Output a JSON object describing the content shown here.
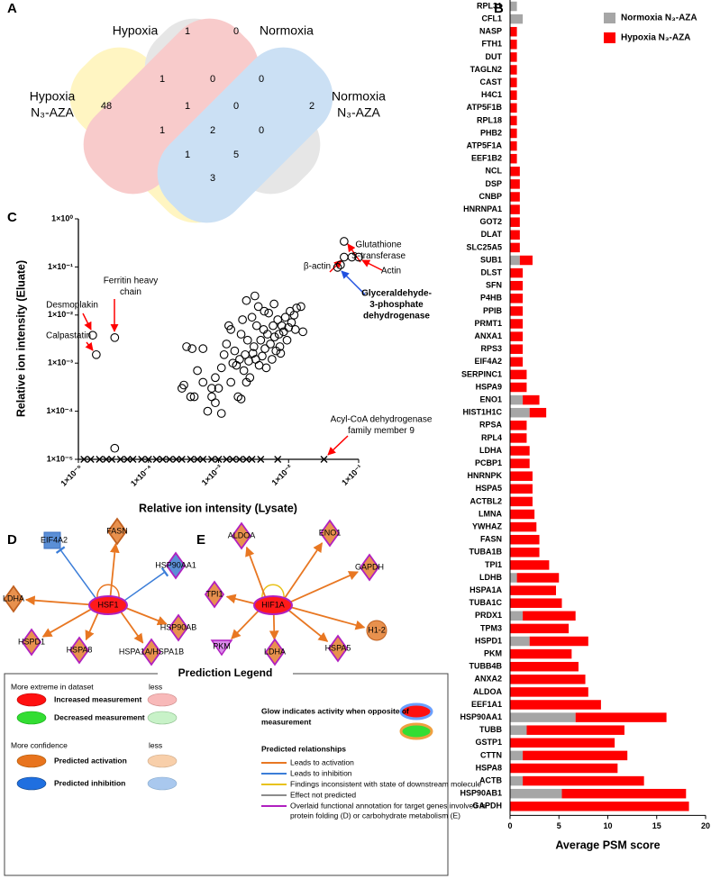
{
  "panels": [
    "A",
    "B",
    "C",
    "D",
    "E"
  ],
  "venn": {
    "labels": [
      {
        "lines": [
          "Hypoxia"
        ]
      },
      {
        "lines": [
          "Normoxia"
        ]
      },
      {
        "lines": [
          "Hypoxia",
          "N₃-AZA"
        ]
      },
      {
        "lines": [
          "Normoxia",
          "N₃-AZA"
        ]
      }
    ],
    "counts": [
      1,
      0,
      1,
      0,
      0,
      48,
      1,
      0,
      2,
      1,
      2,
      0,
      1,
      5,
      3
    ]
  },
  "chart_data": [
    {
      "type": "bar",
      "orientation": "horizontal",
      "stacked": true,
      "xlabel": "Average PSM score",
      "categories": [
        "RPL31",
        "CFL1",
        "NASP",
        "FTH1",
        "DUT",
        "TAGLN2",
        "CAST",
        "H4C1",
        "ATP5F1B",
        "RPL18",
        "PHB2",
        "ATP5F1A",
        "EEF1B2",
        "NCL",
        "DSP",
        "CNBP",
        "HNRNPA1",
        "GOT2",
        "DLAT",
        "SLC25A5",
        "SUB1",
        "DLST",
        "SFN",
        "P4HB",
        "PPIB",
        "PRMT1",
        "ANXA1",
        "RPS3",
        "EIF4A2",
        "SERPINC1",
        "HSPA9",
        "ENO1",
        "HIST1H1C",
        "RPSA",
        "RPL4",
        "LDHA",
        "PCBP1",
        "HNRNPK",
        "HSPA5",
        "ACTBL2",
        "LMNA",
        "YWHAZ",
        "FASN",
        "TUBA1B",
        "TPI1",
        "LDHB",
        "HSPA1A",
        "TUBA1C",
        "PRDX1",
        "TPM3",
        "HSPD1",
        "PKM",
        "TUBB4B",
        "ANXA2",
        "ALDOA",
        "EEF1A1",
        "HSP90AA1",
        "TUBB",
        "GSTP1",
        "CTTN",
        "HSPA8",
        "ACTB",
        "HSP90AB1",
        "GAPDH"
      ],
      "series": [
        {
          "name": "Normoxia N₃-AZA",
          "color": "#a6a6a6",
          "values": [
            0.7,
            1.3,
            0,
            0,
            0,
            0,
            0,
            0,
            0,
            0,
            0,
            0,
            0,
            0,
            0,
            0,
            0,
            0,
            0,
            0,
            1.0,
            0,
            0,
            0,
            0,
            0,
            0,
            0,
            0,
            0,
            0,
            1.3,
            2.0,
            0,
            0,
            0,
            0,
            0,
            0,
            0,
            0,
            0,
            0,
            0,
            0,
            0.7,
            0,
            0,
            1.3,
            0,
            2.0,
            0,
            0,
            0,
            0,
            0,
            6.7,
            1.7,
            0,
            1.3,
            0,
            1.3,
            5.3,
            0
          ]
        },
        {
          "name": "Hypoxia N₃-AZA",
          "color": "#ff0000",
          "values": [
            0,
            0,
            0.7,
            0.7,
            0.7,
            0.7,
            0.7,
            0.7,
            0.7,
            0.7,
            0.7,
            0.7,
            0.7,
            1.0,
            1.0,
            1.0,
            1.0,
            1.0,
            1.0,
            1.0,
            1.3,
            1.3,
            1.3,
            1.3,
            1.3,
            1.3,
            1.3,
            1.3,
            1.3,
            1.7,
            1.7,
            1.7,
            1.7,
            1.7,
            1.7,
            2.0,
            2.0,
            2.3,
            2.3,
            2.3,
            2.5,
            2.7,
            3.0,
            3.0,
            4.0,
            4.3,
            4.7,
            5.3,
            5.4,
            6.0,
            6.0,
            6.3,
            7.0,
            7.7,
            8.0,
            9.3,
            9.3,
            10.0,
            10.7,
            10.7,
            11.0,
            12.4,
            12.7,
            18.3
          ]
        }
      ],
      "xlim": [
        0,
        20
      ],
      "xticks": [
        0,
        5,
        10,
        15,
        20
      ],
      "legend": "top-right"
    },
    {
      "type": "scatter",
      "xscale": "log",
      "yscale": "log",
      "xlabel": "Relative ion intensity (Lysate)",
      "ylabel": "Relative ion intensity (Eluate)",
      "xlim": [
        1e-05,
        0.1
      ],
      "ylim": [
        1e-05,
        1
      ],
      "xticks": [
        {
          "value": 1e-05,
          "label": "1×10⁻⁵"
        },
        {
          "value": 0.0001,
          "label": "1×10⁻⁴"
        },
        {
          "value": 0.001,
          "label": "1×10⁻³"
        },
        {
          "value": 0.01,
          "label": "1×10⁻²"
        },
        {
          "value": 0.1,
          "label": "1×10⁻¹"
        }
      ],
      "yticks": [
        {
          "value": 1e-05,
          "label": "1×10⁻⁵"
        },
        {
          "value": 0.0001,
          "label": "1×10⁻⁴"
        },
        {
          "value": 0.001,
          "label": "1×10⁻³"
        },
        {
          "value": 0.01,
          "label": "1×10⁻²"
        },
        {
          "value": 0.1,
          "label": "1×10⁻¹"
        },
        {
          "value": 1,
          "label": "1×10⁰"
        }
      ],
      "series": [
        {
          "marker": "o",
          "color": "#000000",
          "x": [
            0.0003,
            0.00032,
            0.0004,
            0.00045,
            0.0005,
            0.0006,
            0.0007,
            0.0008,
            0.0009,
            0.001,
            0.0011,
            0.0012,
            0.0013,
            0.0014,
            0.0015,
            0.0016,
            0.0017,
            0.0018,
            0.002,
            0.0021,
            0.0022,
            0.0023,
            0.0024,
            0.0025,
            0.0026,
            0.0027,
            0.0028,
            0.003,
            0.0031,
            0.0032,
            0.0034,
            0.0035,
            0.0037,
            0.0038,
            0.004,
            0.0042,
            0.0044,
            0.0046,
            0.0048,
            0.005,
            0.0052,
            0.0055,
            0.0058,
            0.006,
            0.0063,
            0.0066,
            0.007,
            0.0073,
            0.0077,
            0.008,
            0.0085,
            0.009,
            0.0095,
            0.01,
            0.0105,
            0.011,
            0.012,
            0.0125,
            0.013,
            0.0008,
            0.0009,
            0.0011,
            0.0019,
            0.0006,
            0.00035,
            0.00042,
            0.0015,
            0.0045,
            0.0033,
            0.0062,
            0.0075,
            0.015,
            0.016,
            0.0025,
            0.0021,
            1.6e-05,
            1.8e-05,
            3.3e-05,
            3.3e-05,
            0.062,
            0.062,
            0.08,
            0.1,
            0.05,
            0.055
          ],
          "values": [
            0.0003,
            0.00035,
            0.0002,
            0.0002,
            0.0007,
            0.0004,
            0.0001,
            0.0002,
            0.0005,
            0.0003,
            0.0008,
            0.0015,
            0.0025,
            0.006,
            0.0004,
            0.001,
            0.0018,
            0.0009,
            0.0012,
            0.004,
            0.008,
            0.0007,
            0.0015,
            0.02,
            0.003,
            0.0011,
            0.0005,
            0.009,
            0.0016,
            0.0022,
            0.0012,
            0.006,
            0.015,
            0.0009,
            0.003,
            0.0014,
            0.005,
            0.002,
            0.0008,
            0.004,
            0.011,
            0.0025,
            0.0012,
            0.006,
            0.0035,
            0.0018,
            0.008,
            0.004,
            0.0016,
            0.006,
            0.0045,
            0.009,
            0.003,
            0.0055,
            0.012,
            0.007,
            0.01,
            0.005,
            0.014,
            0.0003,
            0.00015,
            9e-05,
            0.0002,
            0.002,
            0.0022,
            0.002,
            0.005,
            0.012,
            0.025,
            0.017,
            0.0022,
            0.015,
            0.0045,
            0.0004,
            0.00018,
            0.0038,
            0.0015,
            0.0034,
            1.7e-05,
            0.34,
            0.16,
            0.16,
            0.16,
            0.098,
            0.11
          ]
        },
        {
          "marker": "x",
          "color": "#000000",
          "x": [
            1.2e-05,
            1.5e-05,
            2e-05,
            2.5e-05,
            3e-05,
            4e-05,
            5e-05,
            6e-05,
            8e-05,
            0.0001,
            0.00013,
            0.00016,
            0.0002,
            0.00025,
            0.0003,
            0.0004,
            0.0005,
            0.0006,
            0.0008,
            0.001,
            0.0013,
            0.0016,
            0.002,
            0.0025,
            0.003,
            0.004,
            0.007,
            0.032
          ],
          "values": [
            1e-05,
            1e-05,
            1e-05,
            1e-05,
            1e-05,
            1e-05,
            1e-05,
            1e-05,
            1e-05,
            1e-05,
            1e-05,
            1e-05,
            1e-05,
            1e-05,
            1e-05,
            1e-05,
            1e-05,
            1e-05,
            1e-05,
            1e-05,
            1e-05,
            1e-05,
            1e-05,
            1e-05,
            1e-05,
            1e-05,
            1e-05,
            1e-05
          ]
        }
      ],
      "annotations": [
        {
          "lines": [
            "Glutathione",
            "S-transferase"
          ],
          "color": "#000000"
        },
        {
          "lines": [
            "β-actin"
          ],
          "color": "#000000"
        },
        {
          "lines": [
            "Actin"
          ],
          "color": "#000000"
        },
        {
          "lines": [
            "Glyceraldehyde-",
            "3-phosphate",
            "dehydrogenase"
          ],
          "color": "#ff0000"
        },
        {
          "lines": [
            "Ferritin heavy",
            "chain"
          ],
          "color": "#000000"
        },
        {
          "lines": [
            "Desmoplakin"
          ],
          "color": "#000000"
        },
        {
          "lines": [
            "Calpastatin"
          ],
          "color": "#000000"
        },
        {
          "lines": [
            "Acyl-CoA dehydrogenase",
            "family member 9"
          ],
          "color": "#000000"
        }
      ]
    }
  ],
  "networks": [
    {
      "hub": "HSF1",
      "targets": [
        "EIF4A2",
        "FASN",
        "HSP90AA1",
        "LDHA",
        "HSP90AB",
        "HSPD1",
        "HSPA8",
        "HSPA1A/HSPA1B"
      ]
    },
    {
      "hub": "HIF1A",
      "targets": [
        "ALDOA",
        "ENO1",
        "GAPDH",
        "TPI1",
        "H1-2",
        "PKM",
        "LDHA",
        "HSPA5"
      ]
    }
  ],
  "legend": {
    "title": "Prediction Legend",
    "extreme": "More extreme in dataset",
    "less": "less",
    "increased": "Increased measurement",
    "decreased": "Decreased measurement",
    "glow": [
      "Glow indicates activity when opposite of",
      "measurement"
    ],
    "confidence": "More confidence",
    "activation": "Predicted activation",
    "inhibition": "Predicted inhibition",
    "relationships": "Predicted relationships",
    "edges": [
      {
        "lines": [
          "Leads to activation"
        ],
        "color": "#e87722"
      },
      {
        "lines": [
          "Leads to inhibition"
        ],
        "color": "#3b7dd8"
      },
      {
        "lines": [
          "Findings inconsistent with state of downstream molecule"
        ],
        "color": "#e8c21a"
      },
      {
        "lines": [
          "Effect not predicted"
        ],
        "color": "#8c8c8c"
      },
      {
        "lines": [
          "Overlaid functional annotation for target genes involved in",
          "protein folding (D) or carbohydrate metabolism (E)"
        ],
        "color": "#b020c0"
      }
    ]
  }
}
